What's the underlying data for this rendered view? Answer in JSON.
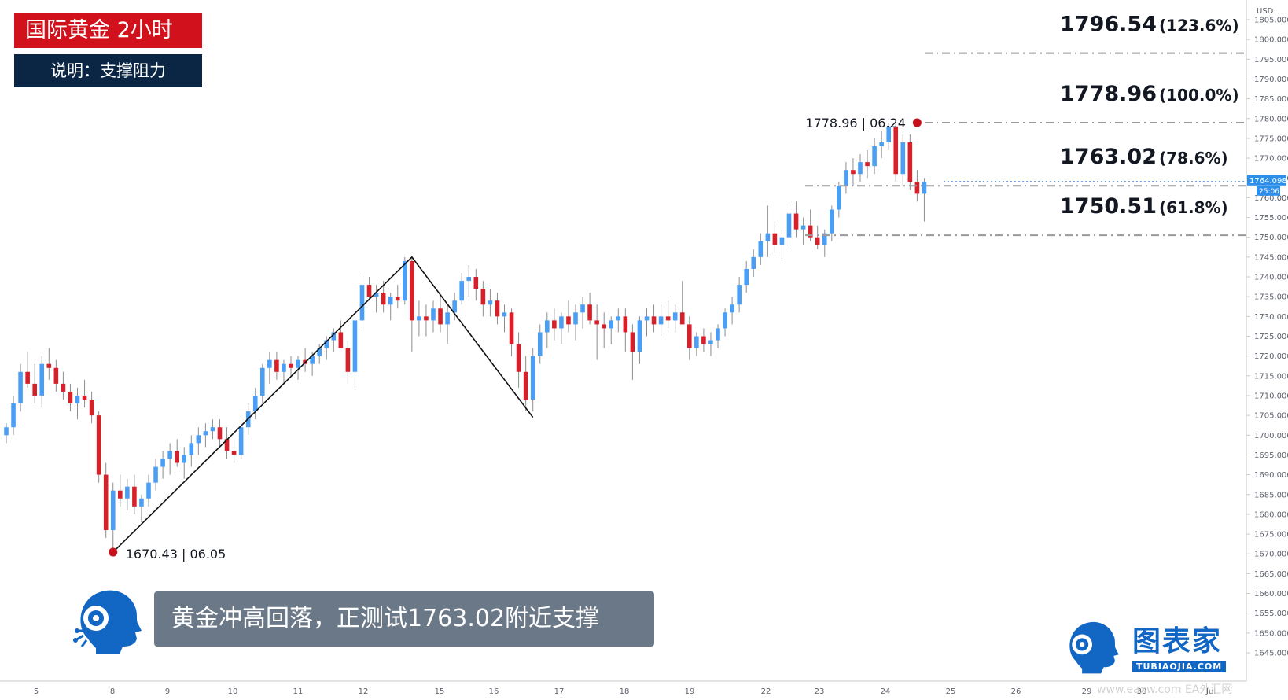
{
  "header": {
    "title": "国际黄金  2小时",
    "subtitle": "说明：支撑阻力"
  },
  "caption": "黄金冲高回落，正测试1763.02附近支撑",
  "brand": {
    "name": "图表家",
    "url": "TUBIAOJIA.COM",
    "accent": "#1266c4"
  },
  "watermark": "www.eaxw.com EA外汇网",
  "colors": {
    "bull": "#4a9ff5",
    "bear": "#d8202b",
    "title_bg": "#d1111b",
    "subtitle_bg": "#0b2544",
    "caption_bg": "#6b7888",
    "price_tag": "#2d8fea"
  },
  "chart_data": {
    "type": "candlestick",
    "currency": "USD",
    "y_axis": {
      "min": 1645,
      "max": 1805,
      "step": 5,
      "side": "right",
      "tick_labels": [
        "1805.000",
        "1800.000",
        "1795.000",
        "1790.000",
        "1785.000",
        "1780.000",
        "1775.000",
        "1770.000",
        "1765.000",
        "1760.000",
        "1755.000",
        "1750.000",
        "1745.000",
        "1740.000",
        "1735.000",
        "1730.000",
        "1725.000",
        "1720.000",
        "1715.000",
        "1710.000",
        "1705.000",
        "1700.000",
        "1695.000",
        "1690.000",
        "1685.000",
        "1680.000",
        "1675.000",
        "1670.000",
        "1665.000",
        "1660.000",
        "1655.000",
        "1650.000",
        "1645.000"
      ]
    },
    "x_axis": {
      "tick_labels": [
        "5",
        "8",
        "9",
        "10",
        "11",
        "12",
        "15",
        "16",
        "17",
        "18",
        "19",
        "22",
        "23",
        "24",
        "25",
        "26",
        "29",
        "30",
        "Jul"
      ]
    },
    "current_price": {
      "value": "1764.098",
      "countdown": "25:06"
    },
    "fib_levels": [
      {
        "price": "1796.54",
        "pct": "(123.6%)",
        "value": 1796.54
      },
      {
        "price": "1778.96",
        "pct": "(100.0%)",
        "value": 1778.96
      },
      {
        "price": "1763.02",
        "pct": "(78.6%)",
        "value": 1763.02
      },
      {
        "price": "1750.51",
        "pct": "(61.8%)",
        "value": 1750.51
      }
    ],
    "points": [
      {
        "label": "1670.43 | 06.05",
        "value": 1670.43,
        "date": "06.05"
      },
      {
        "label": "1778.96 | 06.24",
        "value": 1778.96,
        "date": "06.24"
      }
    ],
    "zigzag_values": [
      1670.43,
      1745,
      1704.5
    ],
    "ohlc": [
      [
        1700,
        1703,
        1698,
        1702
      ],
      [
        1702,
        1710,
        1700,
        1708
      ],
      [
        1708,
        1718,
        1706,
        1716
      ],
      [
        1716,
        1721,
        1712,
        1713
      ],
      [
        1713,
        1718,
        1708,
        1710
      ],
      [
        1710,
        1720,
        1707,
        1718
      ],
      [
        1718,
        1722,
        1714,
        1717
      ],
      [
        1717,
        1719,
        1711,
        1713
      ],
      [
        1713,
        1716,
        1709,
        1711
      ],
      [
        1711,
        1713,
        1706,
        1708
      ],
      [
        1708,
        1712,
        1704,
        1710
      ],
      [
        1710,
        1714,
        1707,
        1709
      ],
      [
        1709,
        1711,
        1703,
        1705
      ],
      [
        1705,
        1706,
        1688,
        1690
      ],
      [
        1690,
        1693,
        1674,
        1676
      ],
      [
        1676,
        1688,
        1671,
        1686
      ],
      [
        1686,
        1690,
        1682,
        1684
      ],
      [
        1684,
        1689,
        1681,
        1687
      ],
      [
        1687,
        1690,
        1680,
        1682
      ],
      [
        1682,
        1685,
        1678,
        1684
      ],
      [
        1684,
        1690,
        1682,
        1688
      ],
      [
        1688,
        1694,
        1686,
        1692
      ],
      [
        1692,
        1696,
        1689,
        1694
      ],
      [
        1694,
        1698,
        1690,
        1696
      ],
      [
        1696,
        1699,
        1692,
        1693
      ],
      [
        1693,
        1697,
        1689,
        1695
      ],
      [
        1695,
        1700,
        1692,
        1698
      ],
      [
        1698,
        1702,
        1695,
        1700
      ],
      [
        1700,
        1703,
        1697,
        1701
      ],
      [
        1701,
        1704,
        1699,
        1702
      ],
      [
        1702,
        1704,
        1697,
        1699
      ],
      [
        1699,
        1702,
        1694,
        1696
      ],
      [
        1696,
        1699,
        1693,
        1695
      ],
      [
        1695,
        1703,
        1694,
        1702
      ],
      [
        1702,
        1708,
        1700,
        1706
      ],
      [
        1706,
        1712,
        1704,
        1710
      ],
      [
        1710,
        1718,
        1708,
        1717
      ],
      [
        1717,
        1721,
        1713,
        1719
      ],
      [
        1719,
        1721,
        1714,
        1716
      ],
      [
        1716,
        1719,
        1713,
        1718
      ],
      [
        1718,
        1720,
        1715,
        1717
      ],
      [
        1717,
        1720,
        1714,
        1719
      ],
      [
        1719,
        1722,
        1716,
        1718
      ],
      [
        1718,
        1721,
        1715,
        1720
      ],
      [
        1720,
        1723,
        1718,
        1722
      ],
      [
        1722,
        1725,
        1719,
        1724
      ],
      [
        1724,
        1727,
        1721,
        1726
      ],
      [
        1726,
        1729,
        1723,
        1722
      ],
      [
        1722,
        1724,
        1713,
        1716
      ],
      [
        1716,
        1730,
        1712,
        1729
      ],
      [
        1729,
        1741,
        1727,
        1738
      ],
      [
        1738,
        1740,
        1734,
        1735
      ],
      [
        1735,
        1738,
        1731,
        1736
      ],
      [
        1736,
        1739,
        1731,
        1733
      ],
      [
        1733,
        1736,
        1729,
        1735
      ],
      [
        1735,
        1738,
        1732,
        1734
      ],
      [
        1734,
        1745,
        1733,
        1744
      ],
      [
        1744,
        1745,
        1721,
        1729
      ],
      [
        1729,
        1734,
        1725,
        1730
      ],
      [
        1730,
        1733,
        1725,
        1729
      ],
      [
        1729,
        1734,
        1726,
        1732
      ],
      [
        1732,
        1735,
        1726,
        1728
      ],
      [
        1728,
        1733,
        1723,
        1731
      ],
      [
        1731,
        1736,
        1729,
        1734
      ],
      [
        1734,
        1741,
        1733,
        1739
      ],
      [
        1739,
        1743,
        1735,
        1740
      ],
      [
        1740,
        1742,
        1734,
        1737
      ],
      [
        1737,
        1739,
        1730,
        1733
      ],
      [
        1733,
        1737,
        1730,
        1734
      ],
      [
        1734,
        1736,
        1728,
        1730
      ],
      [
        1730,
        1733,
        1726,
        1731
      ],
      [
        1731,
        1732,
        1720,
        1723
      ],
      [
        1723,
        1726,
        1712,
        1716
      ],
      [
        1716,
        1720,
        1706,
        1709
      ],
      [
        1709,
        1722,
        1706,
        1720
      ],
      [
        1720,
        1728,
        1718,
        1726
      ],
      [
        1726,
        1731,
        1722,
        1729
      ],
      [
        1729,
        1732,
        1724,
        1727
      ],
      [
        1727,
        1731,
        1723,
        1730
      ],
      [
        1730,
        1734,
        1726,
        1728
      ],
      [
        1728,
        1733,
        1724,
        1731
      ],
      [
        1731,
        1735,
        1727,
        1733
      ],
      [
        1733,
        1736,
        1728,
        1729
      ],
      [
        1729,
        1733,
        1719,
        1728
      ],
      [
        1728,
        1731,
        1722,
        1727
      ],
      [
        1727,
        1730,
        1723,
        1729
      ],
      [
        1729,
        1732,
        1726,
        1730
      ],
      [
        1730,
        1732,
        1721,
        1726
      ],
      [
        1726,
        1728,
        1714,
        1721
      ],
      [
        1721,
        1730,
        1718,
        1729
      ],
      [
        1729,
        1732,
        1725,
        1730
      ],
      [
        1730,
        1733,
        1726,
        1728
      ],
      [
        1728,
        1733,
        1725,
        1730
      ],
      [
        1730,
        1734,
        1727,
        1729
      ],
      [
        1729,
        1733,
        1726,
        1731
      ],
      [
        1731,
        1739,
        1728,
        1728
      ],
      [
        1728,
        1730,
        1719,
        1722
      ],
      [
        1722,
        1726,
        1720,
        1725
      ],
      [
        1725,
        1727,
        1721,
        1723
      ],
      [
        1723,
        1726,
        1720,
        1724
      ],
      [
        1724,
        1728,
        1722,
        1727
      ],
      [
        1727,
        1732,
        1725,
        1731
      ],
      [
        1731,
        1735,
        1728,
        1733
      ],
      [
        1733,
        1740,
        1731,
        1738
      ],
      [
        1738,
        1744,
        1736,
        1742
      ],
      [
        1742,
        1747,
        1740,
        1745
      ],
      [
        1745,
        1751,
        1743,
        1749
      ],
      [
        1749,
        1758,
        1745,
        1751
      ],
      [
        1751,
        1754,
        1746,
        1748
      ],
      [
        1748,
        1752,
        1744,
        1750
      ],
      [
        1750,
        1759,
        1747,
        1756
      ],
      [
        1756,
        1759,
        1750,
        1752
      ],
      [
        1752,
        1755,
        1748,
        1753
      ],
      [
        1753,
        1757,
        1749,
        1750
      ],
      [
        1750,
        1753,
        1747,
        1748
      ],
      [
        1748,
        1752,
        1745,
        1751
      ],
      [
        1751,
        1758,
        1749,
        1757
      ],
      [
        1757,
        1764,
        1755,
        1763
      ],
      [
        1763,
        1769,
        1761,
        1767
      ],
      [
        1767,
        1770,
        1763,
        1766
      ],
      [
        1766,
        1771,
        1764,
        1769
      ],
      [
        1769,
        1772,
        1765,
        1768
      ],
      [
        1768,
        1775,
        1766,
        1773
      ],
      [
        1773,
        1777,
        1770,
        1774
      ],
      [
        1774,
        1779,
        1772,
        1778
      ],
      [
        1778,
        1779,
        1764,
        1766
      ],
      [
        1766,
        1776,
        1763,
        1774
      ],
      [
        1774,
        1776,
        1762,
        1764
      ],
      [
        1764,
        1767,
        1759,
        1761
      ],
      [
        1761,
        1765,
        1754,
        1764
      ]
    ]
  }
}
